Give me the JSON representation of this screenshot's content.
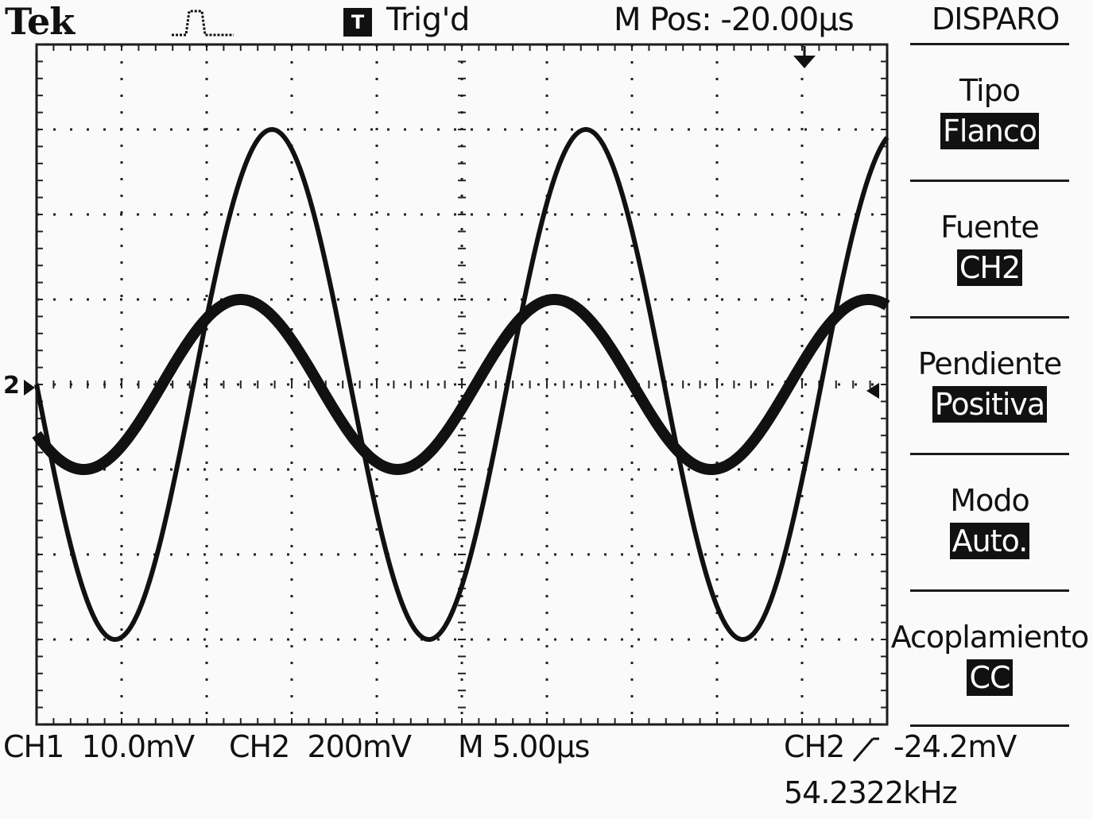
{
  "header": {
    "brand": "Tek",
    "acquisition_icon": "acquire-pulse-icon",
    "trigger_badge": "T",
    "trigger_status": "Trig'd",
    "horizontal_position": "M Pos: -20.00µs"
  },
  "trigger_menu": {
    "title": "DISPARO",
    "items": [
      {
        "label": "Tipo",
        "value": "Flanco"
      },
      {
        "label": "Fuente",
        "value": "CH2"
      },
      {
        "label": "Pendiente",
        "value": "Positiva"
      },
      {
        "label": "Modo",
        "value": "Auto."
      },
      {
        "label": "Acoplamiento",
        "value": "CC"
      }
    ]
  },
  "channel_marker": "2",
  "readouts": {
    "ch1": "CH1  10.0mV",
    "ch2": "CH2  200mV",
    "timebase": "M 5.00µs",
    "trigger_source": "CH2",
    "trigger_slope_icon": "rising-edge-icon",
    "trigger_level": "-24.2mV",
    "frequency": "54.2322kHz"
  },
  "scope": {
    "grid_divisions_x": 10,
    "grid_divisions_y": 8,
    "traces": [
      {
        "name": "CH1",
        "amplitude_div": 1.0,
        "period_div": 3.69,
        "phase_deg": -144,
        "thick": true
      },
      {
        "name": "CH2",
        "amplitude_div": 3.0,
        "period_div": 3.69,
        "phase_deg": 180,
        "thick": false
      }
    ]
  }
}
